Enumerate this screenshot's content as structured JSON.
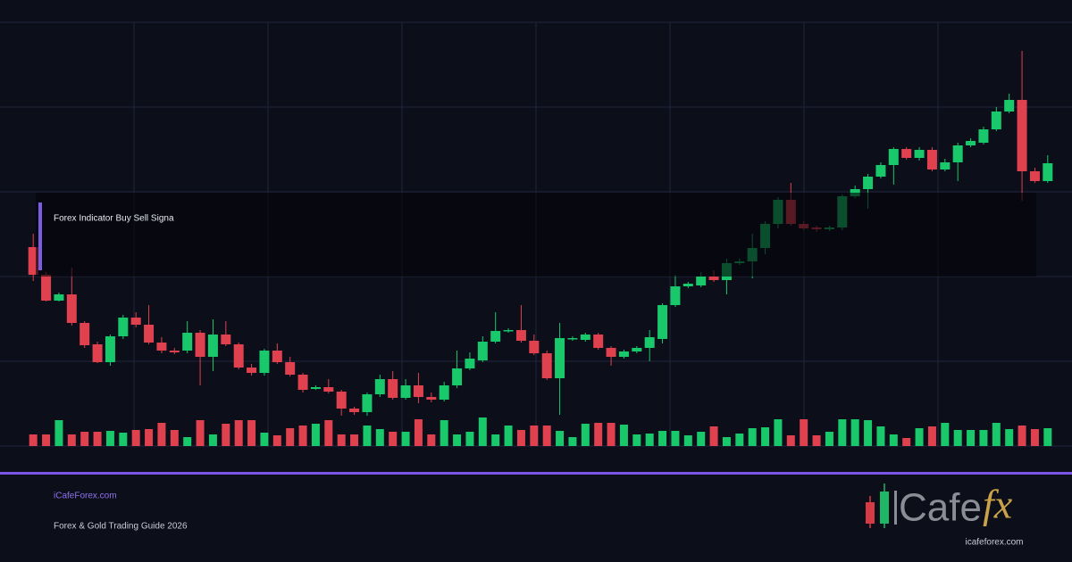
{
  "chart_data": {
    "type": "candlestick",
    "overlay_label": "Forex Indicator Buy Sell Signa",
    "up_color": "#19c86a",
    "down_color": "#e0414e",
    "ylim": [
      0,
      475
    ],
    "vlim": [
      0,
      100
    ],
    "open": [
      223,
      192,
      163,
      170,
      138,
      114,
      94,
      123,
      144,
      136,
      116,
      107,
      107,
      127,
      100,
      125,
      114,
      88,
      82,
      107,
      94,
      80,
      64,
      66,
      61,
      42,
      38,
      58,
      75,
      54,
      68,
      55,
      52,
      68,
      87,
      96,
      117,
      129,
      130,
      118,
      104,
      76,
      120,
      119,
      125,
      110,
      100,
      106,
      110,
      120,
      158,
      179,
      180,
      190,
      186,
      205,
      207,
      222,
      249,
      276,
      249,
      245,
      243,
      245,
      280,
      288,
      302,
      315,
      333,
      323,
      332,
      310,
      318,
      337,
      340,
      355,
      375,
      388,
      308,
      297
    ],
    "high": [
      238,
      195,
      172,
      200,
      140,
      117,
      125,
      147,
      150,
      158,
      122,
      110,
      140,
      130,
      142,
      140,
      116,
      92,
      109,
      115,
      100,
      82,
      68,
      75,
      63,
      44,
      60,
      80,
      84,
      75,
      82,
      60,
      72,
      107,
      105,
      123,
      150,
      132,
      158,
      125,
      107,
      138,
      123,
      127,
      127,
      112,
      108,
      112,
      130,
      160,
      192,
      184,
      195,
      197,
      210,
      210,
      238,
      252,
      279,
      295,
      252,
      247,
      247,
      282,
      292,
      305,
      318,
      335,
      335,
      335,
      335,
      322,
      340,
      345,
      358,
      380,
      395,
      443,
      312,
      326
    ],
    "low": [
      185,
      162,
      162,
      135,
      110,
      93,
      90,
      120,
      133,
      114,
      104,
      103,
      104,
      68,
      84,
      112,
      86,
      79,
      79,
      92,
      78,
      60,
      63,
      59,
      34,
      35,
      34,
      55,
      52,
      52,
      48,
      49,
      50,
      65,
      85,
      94,
      115,
      127,
      116,
      102,
      74,
      35,
      118,
      117,
      108,
      90,
      98,
      104,
      95,
      115,
      156,
      177,
      178,
      184,
      170,
      203,
      188,
      215,
      244,
      247,
      242,
      240,
      241,
      242,
      278,
      266,
      300,
      293,
      321,
      320,
      308,
      308,
      297,
      335,
      338,
      353,
      373,
      275,
      295,
      295
    ],
    "close": [
      192,
      163,
      170,
      138,
      113,
      94,
      123,
      144,
      136,
      116,
      107,
      105,
      127,
      100,
      125,
      114,
      88,
      82,
      107,
      94,
      80,
      63,
      66,
      61,
      42,
      38,
      58,
      75,
      54,
      68,
      55,
      52,
      68,
      87,
      98,
      117,
      129,
      130,
      118,
      104,
      76,
      121,
      121,
      125,
      110,
      100,
      106,
      110,
      122,
      158,
      179,
      182,
      190,
      186,
      205,
      207,
      222,
      249,
      276,
      249,
      244,
      243,
      245,
      280,
      288,
      302,
      315,
      333,
      323,
      332,
      310,
      318,
      337,
      342,
      355,
      375,
      388,
      308,
      297,
      317
    ],
    "volume": [
      13,
      13,
      29,
      13,
      16,
      16,
      17,
      15,
      18,
      19,
      26,
      18,
      10,
      29,
      13,
      25,
      29,
      29,
      15,
      12,
      20,
      23,
      25,
      29,
      13,
      13,
      23,
      19,
      16,
      16,
      30,
      13,
      29,
      13,
      16,
      32,
      13,
      23,
      18,
      23,
      23,
      17,
      10,
      25,
      26,
      26,
      24,
      13,
      14,
      17,
      17,
      12,
      16,
      22,
      10,
      14,
      20,
      21,
      30,
      12,
      30,
      12,
      16,
      30,
      30,
      29,
      22,
      13,
      9,
      20,
      22,
      26,
      18,
      18,
      18,
      26,
      19,
      23,
      19,
      20
    ]
  },
  "footer": {
    "site": "iCafeForex.com",
    "tagline": "Forex & Gold Trading Guide 2026"
  },
  "logo": {
    "word": "Cafe",
    "accent": "fx",
    "url": "icafeforex.com"
  }
}
